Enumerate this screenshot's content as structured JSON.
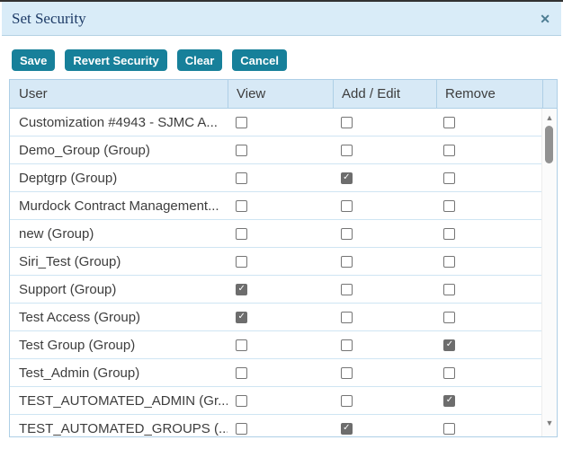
{
  "dialog": {
    "title": "Set Security",
    "close_glyph": "✕"
  },
  "toolbar": {
    "buttons": [
      "Save",
      "Revert Security",
      "Clear",
      "Cancel"
    ]
  },
  "table": {
    "columns": [
      "User",
      "View",
      "Add / Edit",
      "Remove"
    ],
    "check_glyph": "✓",
    "rows": [
      {
        "user": "Customization #4943 - SJMC A...",
        "view": false,
        "add_edit": false,
        "remove": false
      },
      {
        "user": "Demo_Group (Group)",
        "view": false,
        "add_edit": false,
        "remove": false
      },
      {
        "user": "Deptgrp (Group)",
        "view": false,
        "add_edit": true,
        "remove": false
      },
      {
        "user": "Murdock Contract Management...",
        "view": false,
        "add_edit": false,
        "remove": false
      },
      {
        "user": "new (Group)",
        "view": false,
        "add_edit": false,
        "remove": false
      },
      {
        "user": "Siri_Test (Group)",
        "view": false,
        "add_edit": false,
        "remove": false
      },
      {
        "user": "Support (Group)",
        "view": true,
        "add_edit": false,
        "remove": false
      },
      {
        "user": "Test Access (Group)",
        "view": true,
        "add_edit": false,
        "remove": false
      },
      {
        "user": "Test Group (Group)",
        "view": false,
        "add_edit": false,
        "remove": true
      },
      {
        "user": "Test_Admin (Group)",
        "view": false,
        "add_edit": false,
        "remove": false
      },
      {
        "user": "TEST_AUTOMATED_ADMIN (Gr...",
        "view": false,
        "add_edit": false,
        "remove": true
      },
      {
        "user": "TEST_AUTOMATED_GROUPS (...",
        "view": false,
        "add_edit": true,
        "remove": false
      }
    ]
  },
  "scrollbar": {
    "up_glyph": "▲",
    "down_glyph": "▼"
  },
  "colors": {
    "accent_teal": "#17809a",
    "titlebar_bg": "#d9ecf8",
    "header_bg": "#d7e9f6",
    "table_border": "#aecfe6",
    "row_border": "#cfe5f3",
    "title_text": "#1c3a66",
    "checkbox_checked": "#6d6d6d"
  }
}
